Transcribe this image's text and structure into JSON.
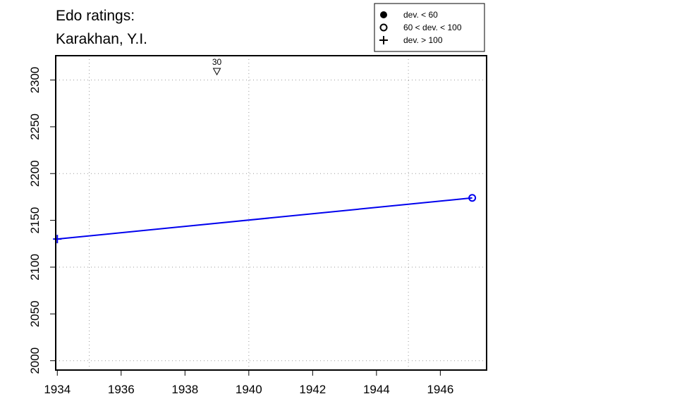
{
  "chart_data": {
    "type": "line",
    "title_line1": "Edo ratings:",
    "title_line2": "Karakhan, Y.I.",
    "xlabel": "",
    "ylabel": "",
    "xlim": [
      1933.95,
      1947.45
    ],
    "ylim": [
      1990,
      2326
    ],
    "x_ticks": [
      1934,
      1936,
      1938,
      1940,
      1942,
      1944,
      1946
    ],
    "x_tick_labels": [
      "1934",
      "1936",
      "1938",
      "1940",
      "1942",
      "1944",
      "1946"
    ],
    "y_ticks": [
      2000,
      2050,
      2100,
      2150,
      2200,
      2250,
      2300
    ],
    "y_tick_labels": [
      "2000",
      "2050",
      "2100",
      "2150",
      "2200",
      "2250",
      "2300"
    ],
    "grid": true,
    "grid_x": [
      1935,
      1940,
      1945
    ],
    "grid_y": [
      2000,
      2100,
      2200,
      2300
    ],
    "series": [
      {
        "color": "#0000ee",
        "points": [
          {
            "x": 1934,
            "y": 2130,
            "marker": "plus"
          },
          {
            "x": 1947,
            "y": 2174,
            "marker": "open-circle"
          }
        ]
      }
    ],
    "annotations": [
      {
        "x": 1939,
        "label": "30",
        "marker": "down-triangle"
      }
    ],
    "legend": {
      "placement": "top-right",
      "entries": [
        {
          "marker": "filled-circle",
          "label": "dev. < 60"
        },
        {
          "marker": "open-circle",
          "label": "60 < dev. < 100"
        },
        {
          "marker": "plus",
          "label": "dev. > 100"
        }
      ]
    }
  }
}
